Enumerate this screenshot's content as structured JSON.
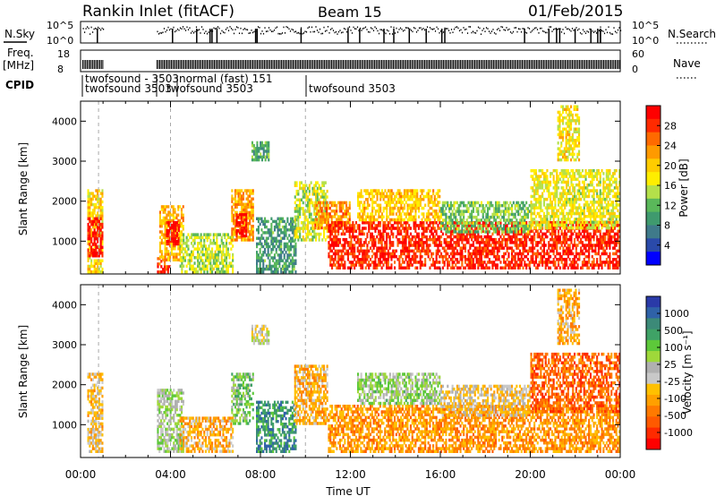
{
  "header": {
    "station": "Rankin Inlet (fitACF)",
    "beam": "Beam 15",
    "date": "01/Feb/2015"
  },
  "top_panels": {
    "nsky_label": "N.Sky",
    "nsky_ticks": [
      "10^5",
      "10^0"
    ],
    "nsearch_label": "N.Search",
    "nsearch_ticks": [
      "10^5",
      "10^0"
    ],
    "freq_label_1": "Freq.",
    "freq_label_2": "[MHz]",
    "freq_ticks": [
      "18",
      "8"
    ],
    "nave_label": "Nave",
    "nave_ticks": [
      "60",
      "0"
    ],
    "cpid_label": "CPID",
    "cpid_texts": [
      "twofsound - 3503",
      "twofsound 3503",
      "normal (fast) 151",
      "twofsound 3503",
      "twofsound 3503"
    ]
  },
  "power_colorbar": {
    "label": "Power [dB]",
    "ticks": [
      "28",
      "24",
      "20",
      "16",
      "12",
      "8",
      "4"
    ],
    "colors": [
      "#ff0000",
      "#ff2a00",
      "#ff6a00",
      "#ff9a00",
      "#ffcc00",
      "#ffee00",
      "#b4e04a",
      "#5ab85a",
      "#3f9a6e",
      "#3f7a8a",
      "#2a4aaa",
      "#0000ff"
    ]
  },
  "velocity_colorbar": {
    "label": "Velocity [m s⁻¹]",
    "ticks": [
      "1000",
      "500",
      "100",
      "25",
      "-25",
      "-100",
      "-500",
      "-1000"
    ],
    "colors": [
      "#2a3aa8",
      "#2f62a8",
      "#3c8a78",
      "#3fa266",
      "#5dc83a",
      "#9fd83a",
      "#b0b0b0",
      "#c8c8c8",
      "#ffc000",
      "#ffa000",
      "#ff7a00",
      "#ff5a00",
      "#ff2a00",
      "#ff0000"
    ]
  },
  "time_axis": {
    "label": "Time UT",
    "ticks": [
      "00:00",
      "04:00",
      "08:00",
      "12:00",
      "16:00",
      "20:00",
      "00:00"
    ]
  },
  "chart_data": [
    {
      "type": "heatmap",
      "title": "Power",
      "ylabel": "Slant Range [km]",
      "xlabel": "",
      "xlim_hours": [
        0,
        24
      ],
      "ylim_km": [
        180,
        4500
      ],
      "yticks": [
        1000,
        2000,
        3000,
        4000
      ],
      "colorbar_label": "Power [dB]",
      "colorbar_range": [
        0,
        30
      ],
      "patches": [
        {
          "t0": 0.3,
          "t1": 1.0,
          "r0": 200,
          "r1": 2300,
          "v": 18
        },
        {
          "t0": 0.3,
          "t1": 1.0,
          "r0": 600,
          "r1": 1600,
          "v": 28
        },
        {
          "t0": 3.4,
          "t1": 4.0,
          "r0": 200,
          "r1": 600,
          "v": 26
        },
        {
          "t0": 3.5,
          "t1": 4.6,
          "r0": 500,
          "r1": 1900,
          "v": 20
        },
        {
          "t0": 3.8,
          "t1": 4.4,
          "r0": 900,
          "r1": 1500,
          "v": 29
        },
        {
          "t0": 4.4,
          "t1": 6.8,
          "r0": 200,
          "r1": 1200,
          "v": 14
        },
        {
          "t0": 6.7,
          "t1": 7.7,
          "r0": 1000,
          "r1": 2300,
          "v": 21
        },
        {
          "t0": 6.9,
          "t1": 7.4,
          "r0": 1100,
          "r1": 1700,
          "v": 29
        },
        {
          "t0": 7.6,
          "t1": 8.4,
          "r0": 3000,
          "r1": 3500,
          "v": 10
        },
        {
          "t0": 7.8,
          "t1": 9.6,
          "r0": 200,
          "r1": 1600,
          "v": 9
        },
        {
          "t0": 9.5,
          "t1": 11.0,
          "r0": 1000,
          "r1": 2500,
          "v": 15
        },
        {
          "t0": 10.4,
          "t1": 12.0,
          "r0": 1300,
          "r1": 2000,
          "v": 22
        },
        {
          "t0": 11.0,
          "t1": 24.0,
          "r0": 300,
          "r1": 1500,
          "v": 27
        },
        {
          "t0": 12.3,
          "t1": 16.0,
          "r0": 1500,
          "r1": 2300,
          "v": 19
        },
        {
          "t0": 16.0,
          "t1": 20.0,
          "r0": 1200,
          "r1": 2000,
          "v": 12
        },
        {
          "t0": 20.0,
          "t1": 24.0,
          "r0": 1300,
          "r1": 2800,
          "v": 16
        },
        {
          "t0": 21.2,
          "t1": 22.2,
          "r0": 3000,
          "r1": 4400,
          "v": 17
        }
      ]
    },
    {
      "type": "heatmap",
      "title": "Velocity",
      "ylabel": "Slant Range [km]",
      "xlabel": "Time UT",
      "xlim_hours": [
        0,
        24
      ],
      "ylim_km": [
        180,
        4500
      ],
      "yticks": [
        1000,
        2000,
        3000,
        4000
      ],
      "colorbar_label": "Velocity [m s⁻¹]",
      "colorbar_range": [
        -1000,
        1000
      ],
      "patches": [
        {
          "t0": 0.3,
          "t1": 1.0,
          "r0": 300,
          "r1": 2300,
          "v": -200
        },
        {
          "t0": 3.4,
          "t1": 4.6,
          "r0": 300,
          "r1": 1900,
          "v": 150
        },
        {
          "t0": 4.4,
          "t1": 6.8,
          "r0": 300,
          "r1": 1200,
          "v": -300
        },
        {
          "t0": 6.7,
          "t1": 7.7,
          "r0": 1000,
          "r1": 2300,
          "v": 300
        },
        {
          "t0": 7.6,
          "t1": 8.4,
          "r0": 3000,
          "r1": 3500,
          "v": 20
        },
        {
          "t0": 7.8,
          "t1": 9.6,
          "r0": 300,
          "r1": 1600,
          "v": 600
        },
        {
          "t0": 9.5,
          "t1": 11.0,
          "r0": 1000,
          "r1": 2500,
          "v": -300
        },
        {
          "t0": 11.0,
          "t1": 24.0,
          "r0": 300,
          "r1": 1500,
          "v": -400
        },
        {
          "t0": 12.3,
          "t1": 16.0,
          "r0": 1500,
          "r1": 2300,
          "v": 200
        },
        {
          "t0": 16.0,
          "t1": 20.0,
          "r0": 1200,
          "r1": 2000,
          "v": -150
        },
        {
          "t0": 20.0,
          "t1": 24.0,
          "r0": 1300,
          "r1": 2800,
          "v": -600
        },
        {
          "t0": 21.2,
          "t1": 22.2,
          "r0": 3000,
          "r1": 4400,
          "v": -300
        }
      ]
    }
  ]
}
